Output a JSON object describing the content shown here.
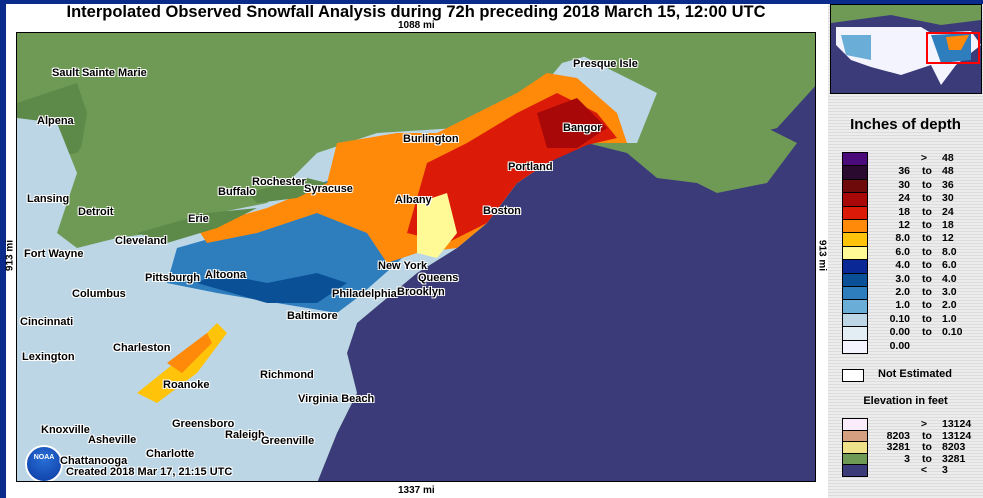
{
  "title": "Interpolated Observed Snowfall Analysis during 72h preceding 2018 March 15, 12:00 UTC",
  "distances": {
    "top": "1088 mi",
    "bottom": "1337 mi",
    "left": "913 mi",
    "right": "913 mi"
  },
  "created": "Created 2018 Mar 17, 21:15 UTC",
  "logo": "NOAA",
  "cities": [
    "Sault Sainte Marie",
    "Alpena",
    "Lansing",
    "Detroit",
    "Fort Wayne",
    "Columbus",
    "Cincinnati",
    "Lexington",
    "Erie",
    "Cleveland",
    "Pittsburgh",
    "Altoona",
    "Buffalo",
    "Rochester",
    "Syracuse",
    "Albany",
    "Burlington",
    "Portland",
    "Bangor",
    "Presque Isle",
    "Boston",
    "New York",
    "Queens",
    "Brooklyn",
    "Philadelphia",
    "Baltimore",
    "Charleston",
    "Roanoke",
    "Richmond",
    "Virginia Beach",
    "Greensboro",
    "Raleigh",
    "Greenville",
    "Knoxville",
    "Asheville",
    "Charlotte",
    "Chattanooga"
  ],
  "legend": {
    "title": "Inches of depth",
    "items": [
      {
        "color": "#4b0a7a",
        "lo": ">",
        "hi": "48"
      },
      {
        "color": "#2a0a2e",
        "lo": "36",
        "hi": "48"
      },
      {
        "color": "#6e0a0a",
        "lo": "30",
        "hi": "36"
      },
      {
        "color": "#a80808",
        "lo": "24",
        "hi": "30"
      },
      {
        "color": "#dc1a08",
        "lo": "18",
        "hi": "24"
      },
      {
        "color": "#ff8a0a",
        "lo": "12",
        "hi": "18"
      },
      {
        "color": "#ffc40a",
        "lo": "8.0",
        "hi": "12"
      },
      {
        "color": "#fffa96",
        "lo": "6.0",
        "hi": "8.0"
      },
      {
        "color": "#0a2896",
        "lo": "4.0",
        "hi": "6.0"
      },
      {
        "color": "#0a5096",
        "lo": "3.0",
        "hi": "4.0"
      },
      {
        "color": "#2e7ebe",
        "lo": "2.0",
        "hi": "3.0"
      },
      {
        "color": "#6aaed8",
        "lo": "1.0",
        "hi": "2.0"
      },
      {
        "color": "#bcd6e6",
        "lo": "0.10",
        "hi": "1.0"
      },
      {
        "color": "#e2eef4",
        "lo": "0.00",
        "hi": "0.10"
      },
      {
        "color": "#f4f4ff",
        "lo": "0.00",
        "hi": ""
      }
    ],
    "to": "to",
    "not_estimated": "Not Estimated",
    "elev_title": "Elevation in feet",
    "elev": [
      {
        "color": "#fbecfb",
        "lo": ">",
        "hi": "13124"
      },
      {
        "color": "#d4a080",
        "lo": "8203",
        "hi": "13124"
      },
      {
        "color": "#efe08a",
        "lo": "3281",
        "hi": "8203"
      },
      {
        "color": "#6f9a55",
        "lo": "3",
        "hi": "3281"
      },
      {
        "color": "#3b3b7a",
        "lo": "<",
        "hi": "3"
      }
    ]
  }
}
